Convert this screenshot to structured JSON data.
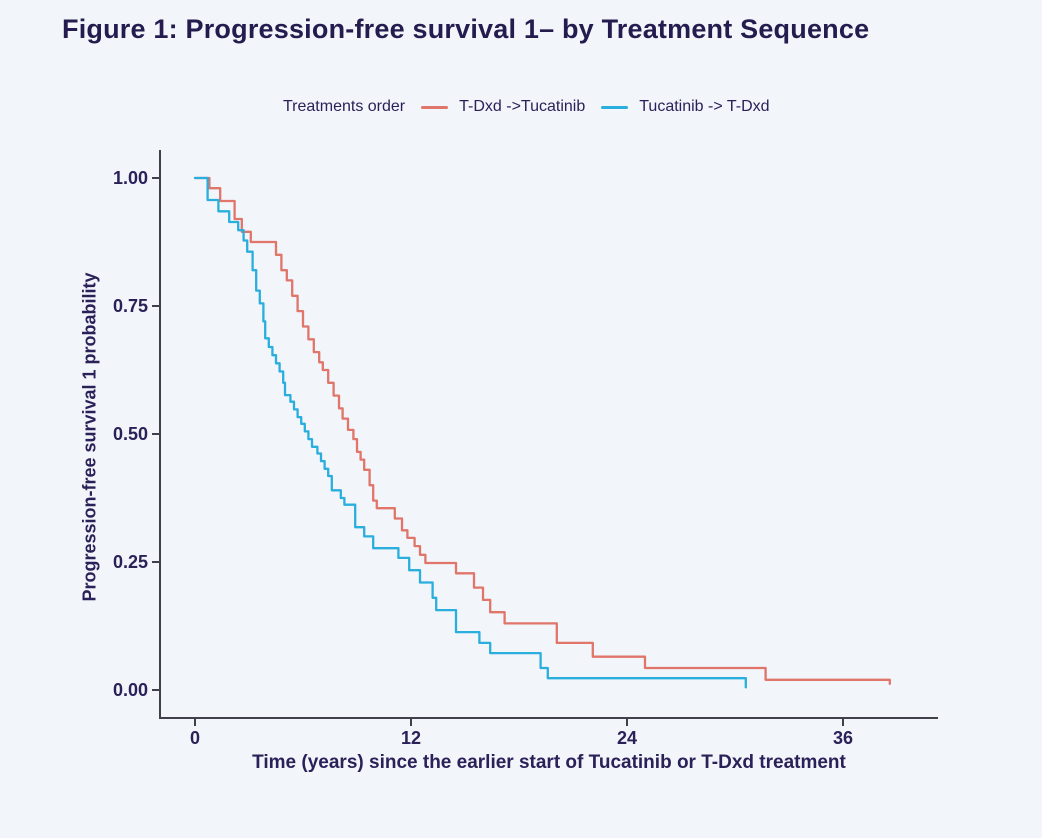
{
  "figure": {
    "title": "Figure 1: Progression-free survival 1– by Treatment Sequence"
  },
  "legend": {
    "label": "Treatments order",
    "items": [
      {
        "name": "T-Dxd ->Tucatinib",
        "color": "#e0756a"
      },
      {
        "name": "Tucatinib -> T-Dxd",
        "color": "#2aaede"
      }
    ]
  },
  "colors": {
    "background": "#f2f5fa",
    "axis_line": "#3f4049",
    "text": "#2b2159",
    "series_tdxd_first": "#e0756a",
    "series_tucatinib_first": "#2aaede"
  },
  "chart_data": {
    "type": "line",
    "subtype": "kaplan-meier-step",
    "title": "Figure 1: Progression-free survival 1– by Treatment Sequence",
    "xlabel": "Time (years) since the earlier start of Tucatinib or T-Dxd treatment",
    "ylabel": "Progression-free survival 1 probability",
    "legend_title": "Treatments order",
    "legend_position": "top",
    "grid": false,
    "xlim": [
      0,
      41
    ],
    "ylim": [
      0,
      1.0
    ],
    "x_ticks": {
      "values": [
        0,
        12,
        24,
        36
      ],
      "labels": [
        "0",
        "12",
        "24",
        "36"
      ]
    },
    "y_ticks": {
      "values": [
        1.0,
        0.75,
        0.5,
        0.25,
        0.0
      ],
      "labels": [
        "1.00",
        "0.75",
        "0.50",
        "0.25",
        "0.00"
      ]
    },
    "series": [
      {
        "name": "T-Dxd ->Tucatinib",
        "color": "#e0756a",
        "points": [
          [
            0.0,
            1.0
          ],
          [
            0.8,
            0.98
          ],
          [
            1.4,
            0.955
          ],
          [
            2.2,
            0.92
          ],
          [
            2.6,
            0.895
          ],
          [
            3.1,
            0.875
          ],
          [
            4.5,
            0.85
          ],
          [
            4.8,
            0.82
          ],
          [
            5.1,
            0.8
          ],
          [
            5.4,
            0.77
          ],
          [
            5.7,
            0.74
          ],
          [
            6.0,
            0.71
          ],
          [
            6.3,
            0.685
          ],
          [
            6.6,
            0.66
          ],
          [
            6.9,
            0.64
          ],
          [
            7.1,
            0.625
          ],
          [
            7.4,
            0.6
          ],
          [
            7.7,
            0.575
          ],
          [
            8.0,
            0.55
          ],
          [
            8.2,
            0.53
          ],
          [
            8.5,
            0.508
          ],
          [
            8.8,
            0.49
          ],
          [
            9.0,
            0.465
          ],
          [
            9.2,
            0.45
          ],
          [
            9.4,
            0.43
          ],
          [
            9.7,
            0.4
          ],
          [
            9.9,
            0.37
          ],
          [
            10.1,
            0.355
          ],
          [
            11.1,
            0.335
          ],
          [
            11.5,
            0.312
          ],
          [
            11.8,
            0.297
          ],
          [
            12.2,
            0.281
          ],
          [
            12.5,
            0.264
          ],
          [
            12.8,
            0.248
          ],
          [
            14.5,
            0.228
          ],
          [
            15.5,
            0.2
          ],
          [
            16.0,
            0.176
          ],
          [
            16.4,
            0.152
          ],
          [
            17.2,
            0.13
          ],
          [
            20.1,
            0.092
          ],
          [
            22.1,
            0.065
          ],
          [
            25.0,
            0.043
          ],
          [
            31.7,
            0.02
          ],
          [
            38.6,
            0.012
          ]
        ]
      },
      {
        "name": "Tucatinib -> T-Dxd",
        "color": "#2aaede",
        "points": [
          [
            0.0,
            1.0
          ],
          [
            0.7,
            0.957
          ],
          [
            1.3,
            0.935
          ],
          [
            1.9,
            0.914
          ],
          [
            2.4,
            0.898
          ],
          [
            2.7,
            0.878
          ],
          [
            2.9,
            0.856
          ],
          [
            3.2,
            0.82
          ],
          [
            3.4,
            0.78
          ],
          [
            3.6,
            0.755
          ],
          [
            3.8,
            0.72
          ],
          [
            3.9,
            0.687
          ],
          [
            4.1,
            0.67
          ],
          [
            4.3,
            0.654
          ],
          [
            4.5,
            0.638
          ],
          [
            4.7,
            0.622
          ],
          [
            4.9,
            0.6
          ],
          [
            5.0,
            0.576
          ],
          [
            5.3,
            0.563
          ],
          [
            5.5,
            0.548
          ],
          [
            5.7,
            0.533
          ],
          [
            5.9,
            0.52
          ],
          [
            6.1,
            0.505
          ],
          [
            6.3,
            0.49
          ],
          [
            6.5,
            0.475
          ],
          [
            6.8,
            0.462
          ],
          [
            7.0,
            0.447
          ],
          [
            7.2,
            0.432
          ],
          [
            7.4,
            0.418
          ],
          [
            7.6,
            0.39
          ],
          [
            8.1,
            0.375
          ],
          [
            8.3,
            0.362
          ],
          [
            8.9,
            0.318
          ],
          [
            9.4,
            0.3
          ],
          [
            9.9,
            0.277
          ],
          [
            11.3,
            0.258
          ],
          [
            11.9,
            0.234
          ],
          [
            12.5,
            0.21
          ],
          [
            13.2,
            0.18
          ],
          [
            13.4,
            0.156
          ],
          [
            14.5,
            0.113
          ],
          [
            15.8,
            0.092
          ],
          [
            16.4,
            0.072
          ],
          [
            19.2,
            0.043
          ],
          [
            19.6,
            0.023
          ],
          [
            30.6,
            0.005
          ]
        ]
      }
    ]
  }
}
